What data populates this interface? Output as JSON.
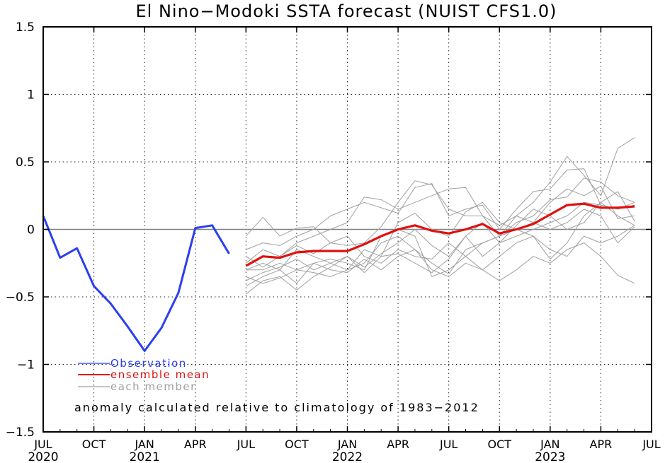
{
  "chart_data": {
    "type": "line",
    "title": "El Nino−Modoki SSTA forecast (NUIST CFS1.0)",
    "note": "anomaly calculated relative to climatology of 1983−2012",
    "ylim": [
      -1.5,
      1.5
    ],
    "yticks": [
      {
        "value": 1.5,
        "label": "1.5"
      },
      {
        "value": 1,
        "label": "1"
      },
      {
        "value": 0.5,
        "label": "0.5"
      },
      {
        "value": 0,
        "label": "0"
      },
      {
        "value": -0.5,
        "label": "−0.5"
      },
      {
        "value": -1,
        "label": "−1"
      },
      {
        "value": -1.5,
        "label": "−1.5"
      }
    ],
    "xlim": [
      "2020-07",
      "2023-07"
    ],
    "xticks": [
      {
        "month": "2020-07",
        "label": "JUL",
        "year": "2020"
      },
      {
        "month": "2020-10",
        "label": "OCT",
        "year": ""
      },
      {
        "month": "2021-01",
        "label": "JAN",
        "year": "2021"
      },
      {
        "month": "2021-04",
        "label": "APR",
        "year": ""
      },
      {
        "month": "2021-07",
        "label": "JUL",
        "year": ""
      },
      {
        "month": "2021-10",
        "label": "OCT",
        "year": ""
      },
      {
        "month": "2022-01",
        "label": "JAN",
        "year": "2022"
      },
      {
        "month": "2022-04",
        "label": "APR",
        "year": ""
      },
      {
        "month": "2022-07",
        "label": "JUL",
        "year": ""
      },
      {
        "month": "2022-10",
        "label": "OCT",
        "year": ""
      },
      {
        "month": "2023-01",
        "label": "JAN",
        "year": "2023"
      },
      {
        "month": "2023-04",
        "label": "APR",
        "year": ""
      },
      {
        "month": "2023-07",
        "label": "JUL",
        "year": ""
      }
    ],
    "grid": true,
    "legend_placement": "lower-left",
    "series": [
      {
        "name": "Observation",
        "color": "#2b3ff0",
        "start": "2020-07",
        "values": [
          0.1,
          -0.21,
          -0.14,
          -0.42,
          -0.55,
          -0.72,
          -0.9,
          -0.73,
          -0.47,
          0.01,
          0.03,
          -0.18
        ]
      },
      {
        "name": "ensemble mean",
        "color": "#e01010",
        "start": "2021-07",
        "values": [
          -0.27,
          -0.2,
          -0.21,
          -0.17,
          -0.16,
          -0.16,
          -0.16,
          -0.11,
          -0.05,
          0.0,
          0.03,
          -0.01,
          -0.03,
          0.0,
          0.04,
          -0.03,
          0.0,
          0.04,
          0.11,
          0.18,
          0.19,
          0.16,
          0.16,
          0.17
        ]
      },
      {
        "name": "each member",
        "color": "#a0a0a0",
        "start": "2021-07",
        "members": [
          [
            -0.05,
            0.09,
            -0.05,
            0.01,
            0.02,
            -0.1,
            -0.12,
            -0.1,
            0.02,
            0.2,
            0.36,
            0.33,
            0.15,
            0.1,
            0.1,
            0.03,
            0.1,
            0.2,
            0.35,
            0.54,
            0.4,
            0.25,
            0.6,
            0.68
          ],
          [
            -0.15,
            -0.1,
            -0.12,
            -0.05,
            0.0,
            0.1,
            0.15,
            0.2,
            0.16,
            0.12,
            0.31,
            0.34,
            0.1,
            0.15,
            0.18,
            0.0,
            0.15,
            0.28,
            0.3,
            0.44,
            0.45,
            0.18,
            0.15,
            0.18
          ],
          [
            -0.25,
            -0.15,
            -0.2,
            -0.1,
            -0.05,
            0.0,
            0.05,
            0.24,
            0.22,
            0.15,
            0.2,
            0.25,
            0.3,
            0.31,
            0.1,
            -0.05,
            0.05,
            0.1,
            0.22,
            0.24,
            0.38,
            0.35,
            0.25,
            0.2
          ],
          [
            -0.3,
            -0.25,
            -0.3,
            -0.15,
            -0.2,
            -0.25,
            -0.3,
            -0.15,
            -0.2,
            0.05,
            0.12,
            0.0,
            -0.05,
            0.13,
            0.2,
            0.05,
            0.0,
            0.05,
            0.2,
            0.3,
            0.25,
            0.32,
            0.08,
            0.1
          ],
          [
            -0.38,
            -0.32,
            -0.28,
            -0.22,
            -0.3,
            -0.25,
            -0.2,
            -0.28,
            -0.18,
            -0.1,
            0.0,
            -0.12,
            -0.2,
            -0.05,
            0.05,
            -0.1,
            0.03,
            0.15,
            0.1,
            0.0,
            0.05,
            0.2,
            0.28,
            0.06
          ],
          [
            -0.42,
            -0.35,
            -0.3,
            -0.4,
            -0.25,
            -0.3,
            -0.32,
            -0.22,
            -0.3,
            -0.2,
            -0.15,
            -0.25,
            -0.33,
            -0.15,
            -0.1,
            -0.05,
            0.1,
            0.05,
            0.0,
            0.05,
            0.15,
            0.1,
            -0.1,
            0.02
          ],
          [
            -0.48,
            -0.38,
            -0.35,
            -0.45,
            -0.35,
            -0.28,
            -0.2,
            -0.32,
            -0.2,
            -0.18,
            -0.25,
            -0.32,
            -0.22,
            -0.05,
            -0.2,
            -0.1,
            -0.05,
            0.0,
            0.05,
            0.1,
            0.2,
            0.18,
            0.15,
            0.2
          ],
          [
            -0.2,
            -0.28,
            -0.2,
            -0.12,
            -0.18,
            -0.1,
            -0.05,
            -0.2,
            -0.25,
            -0.15,
            -0.2,
            -0.22,
            -0.1,
            -0.2,
            -0.3,
            -0.38,
            -0.3,
            -0.2,
            -0.25,
            -0.15,
            -0.1,
            -0.2,
            -0.34,
            -0.4
          ],
          [
            -0.3,
            -0.3,
            -0.25,
            -0.3,
            -0.32,
            -0.35,
            -0.3,
            -0.25,
            -0.1,
            -0.05,
            -0.15,
            -0.3,
            -0.35,
            -0.25,
            -0.3,
            -0.2,
            -0.1,
            -0.05,
            -0.15,
            -0.2,
            -0.05,
            -0.1,
            -0.05,
            0.03
          ],
          [
            -0.35,
            -0.4,
            -0.36,
            -0.3,
            -0.25,
            -0.22,
            -0.25,
            -0.3,
            -0.05,
            0.0,
            -0.05,
            -0.35,
            -0.3,
            -0.2,
            -0.1,
            -0.05,
            0.0,
            -0.05,
            -0.22,
            -0.1,
            0.1,
            0.2,
            0.1,
            0.03
          ]
        ]
      }
    ]
  }
}
